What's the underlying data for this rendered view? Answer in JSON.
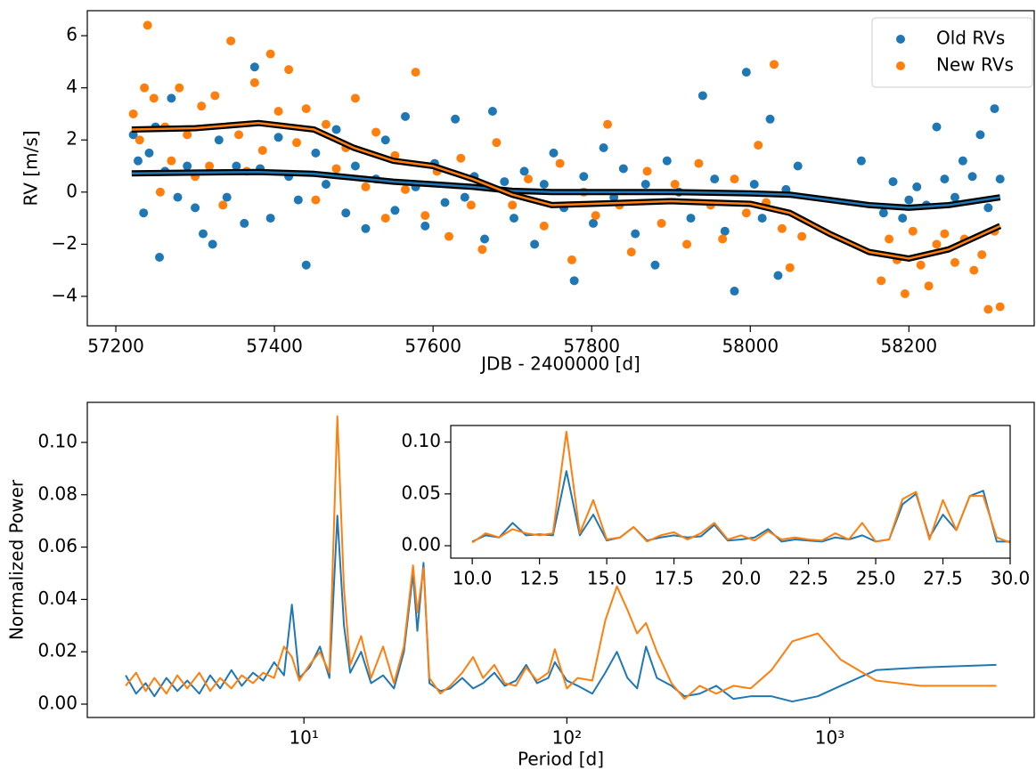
{
  "chart_data": [
    {
      "type": "scatter",
      "xlabel": "JDB - 2400000 [d]",
      "ylabel": "RV [m/s]",
      "xlim": [
        57164,
        58358
      ],
      "ylim": [
        -5.13,
        6.96
      ],
      "xticks": [
        57200,
        57400,
        57600,
        57800,
        58000,
        58200
      ],
      "yticks": [
        {
          "value": -4,
          "label": "−4"
        },
        {
          "value": -2,
          "label": "−2"
        },
        0,
        2,
        4,
        6
      ],
      "legend": "upper right",
      "series": [
        {
          "name": "Old RVs",
          "color": "#1f77b4",
          "x": [
            57222,
            57228,
            57235,
            57242,
            57250,
            57255,
            57262,
            57270,
            57278,
            57290,
            57300,
            57310,
            57322,
            57330,
            57340,
            57352,
            57362,
            57375,
            57382,
            57395,
            57405,
            57418,
            57430,
            57440,
            57452,
            57465,
            57478,
            57490,
            57502,
            57515,
            57528,
            57540,
            57552,
            57565,
            57578,
            57590,
            57602,
            57615,
            57628,
            57640,
            57652,
            57665,
            57675,
            57690,
            57702,
            57715,
            57728,
            57740,
            57752,
            57765,
            57778,
            57790,
            57802,
            57815,
            57828,
            57840,
            57855,
            57868,
            57880,
            57895,
            57910,
            57925,
            57940,
            57955,
            57968,
            57980,
            57995,
            58005,
            58015,
            58025,
            58035,
            58045,
            58060,
            58140,
            58168,
            58180,
            58192,
            58200,
            58210,
            58222,
            58235,
            58245,
            58258,
            58268,
            58280,
            58290,
            58300,
            58308,
            58315
          ],
          "values": [
            2.2,
            1.2,
            -0.8,
            1.5,
            2.5,
            -2.5,
            0.8,
            3.6,
            -0.2,
            1.0,
            -0.6,
            -1.6,
            -2.0,
            2.0,
            -0.2,
            1.0,
            -1.2,
            4.8,
            0.9,
            -1.0,
            2.1,
            0.6,
            -0.3,
            -2.8,
            1.5,
            0.3,
            2.4,
            -0.8,
            1.0,
            -1.4,
            0.5,
            2.0,
            -0.7,
            2.9,
            0.2,
            -1.3,
            1.1,
            -0.4,
            2.8,
            -0.2,
            0.6,
            -1.8,
            3.1,
            0.4,
            -1.0,
            0.8,
            -2.0,
            0.3,
            1.5,
            -0.6,
            -3.4,
            0.6,
            -1.2,
            1.7,
            -0.2,
            0.9,
            -1.6,
            0.3,
            -2.8,
            1.2,
            0.0,
            -1.0,
            3.7,
            0.5,
            -1.5,
            -3.8,
            4.6,
            0.3,
            -1.0,
            2.8,
            -3.2,
            0.1,
            1.0,
            1.2,
            -0.8,
            0.4,
            -1.0,
            -0.3,
            0.2,
            -0.5,
            2.5,
            0.5,
            -0.2,
            1.2,
            0.6,
            2.2,
            -0.6,
            3.2,
            0.5
          ]
        },
        {
          "name": "New RVs",
          "color": "#ff7f0e",
          "x": [
            57222,
            57230,
            57236,
            57240,
            57248,
            57256,
            57262,
            57270,
            57280,
            57290,
            57300,
            57308,
            57318,
            57325,
            57335,
            57345,
            57355,
            57365,
            57375,
            57385,
            57395,
            57405,
            57418,
            57428,
            57440,
            57452,
            57465,
            57478,
            57490,
            57502,
            57515,
            57528,
            57540,
            57552,
            57565,
            57578,
            57590,
            57605,
            57620,
            57635,
            57648,
            57662,
            57680,
            57700,
            57720,
            57740,
            57760,
            57775,
            57790,
            57805,
            57820,
            57835,
            57850,
            57870,
            57888,
            57905,
            57920,
            57935,
            57950,
            57965,
            57980,
            57995,
            58010,
            58020,
            58030,
            58040,
            58050,
            58065,
            58165,
            58175,
            58185,
            58195,
            58205,
            58215,
            58225,
            58235,
            58245,
            58258,
            58270,
            58282,
            58292,
            58300,
            58308,
            58315
          ],
          "values": [
            3.0,
            2.0,
            4.0,
            6.4,
            3.6,
            0.0,
            2.5,
            1.2,
            4.0,
            2.2,
            0.6,
            3.3,
            1.0,
            3.7,
            -0.5,
            5.8,
            2.2,
            0.8,
            4.2,
            1.6,
            5.3,
            3.1,
            4.7,
            1.9,
            3.2,
            -0.3,
            2.6,
            0.9,
            1.7,
            3.6,
            0.2,
            2.3,
            -1.0,
            1.4,
            0.1,
            4.6,
            -0.9,
            0.8,
            -1.7,
            1.3,
            -0.5,
            -2.2,
            1.9,
            -0.5,
            0.5,
            -1.3,
            1.1,
            -2.6,
            0.0,
            -0.9,
            2.6,
            -0.5,
            -2.3,
            0.8,
            -1.2,
            0.3,
            -2.0,
            1.1,
            -0.5,
            -1.8,
            0.5,
            -0.8,
            1.8,
            -0.4,
            4.9,
            -1.4,
            -2.9,
            -1.7,
            -3.4,
            -1.8,
            -2.6,
            -3.9,
            -1.5,
            -2.8,
            -3.6,
            -2.0,
            -1.6,
            -2.7,
            -1.8,
            -3.0,
            -2.4,
            -4.5,
            -1.5,
            -4.4
          ]
        }
      ],
      "fits": [
        {
          "color": "#1f77b4",
          "x": [
            57220,
            57300,
            57380,
            57450,
            57500,
            57550,
            57600,
            57650,
            57700,
            57750,
            57800,
            57900,
            58000,
            58050,
            58100,
            58150,
            58200,
            58250,
            58315
          ],
          "values": [
            0.72,
            0.75,
            0.77,
            0.7,
            0.55,
            0.4,
            0.3,
            0.2,
            0.05,
            0.0,
            0.0,
            0.0,
            -0.05,
            -0.1,
            -0.3,
            -0.5,
            -0.6,
            -0.5,
            -0.2
          ]
        },
        {
          "color": "#ff7f0e",
          "x": [
            57220,
            57300,
            57380,
            57450,
            57500,
            57550,
            57600,
            57650,
            57700,
            57750,
            57800,
            57900,
            58000,
            58050,
            58100,
            58150,
            58200,
            58250,
            58315
          ],
          "values": [
            2.4,
            2.45,
            2.65,
            2.4,
            1.7,
            1.2,
            1.0,
            0.5,
            -0.1,
            -0.5,
            -0.45,
            -0.35,
            -0.45,
            -0.8,
            -1.6,
            -2.3,
            -2.55,
            -2.2,
            -1.3
          ]
        }
      ]
    },
    {
      "type": "line",
      "xlabel": "Period [d]",
      "ylabel": "Normalized Power",
      "xlog": true,
      "xlim": [
        1.5,
        5990
      ],
      "ylim": [
        -0.0051,
        0.1153
      ],
      "xticks": [
        {
          "value": 10,
          "label": "10¹"
        },
        {
          "value": 100,
          "label": "10²"
        },
        {
          "value": 1000,
          "label": "10³"
        }
      ],
      "yticks": [
        {
          "value": 0,
          "label": "0.00"
        },
        {
          "value": 0.02,
          "label": "0.02"
        },
        {
          "value": 0.04,
          "label": "0.04"
        },
        {
          "value": 0.06,
          "label": "0.06"
        },
        {
          "value": 0.08,
          "label": "0.08"
        },
        {
          "value": 0.1,
          "label": "0.10"
        }
      ],
      "x": [
        2.1,
        2.3,
        2.5,
        2.7,
        3,
        3.3,
        3.6,
        4,
        4.4,
        4.8,
        5.3,
        5.8,
        6.4,
        7,
        7.7,
        8.4,
        9,
        9.6,
        10.5,
        11.5,
        12.5,
        13.4,
        14.2,
        15,
        16.5,
        18,
        20,
        22,
        24,
        26,
        27,
        28.5,
        30,
        33,
        36,
        40,
        44,
        48,
        53,
        58,
        64,
        70,
        77,
        85,
        90,
        100,
        110,
        125,
        140,
        155,
        170,
        185,
        200,
        220,
        250,
        280,
        320,
        370,
        430,
        500,
        600,
        720,
        900,
        1100,
        1500,
        2200,
        4300
      ],
      "series": [
        {
          "color": "#1f77b4",
          "values": [
            0.011,
            0.004,
            0.008,
            0.003,
            0.01,
            0.005,
            0.009,
            0.004,
            0.011,
            0.006,
            0.013,
            0.007,
            0.012,
            0.009,
            0.016,
            0.011,
            0.038,
            0.01,
            0.014,
            0.022,
            0.01,
            0.072,
            0.03,
            0.012,
            0.02,
            0.008,
            0.011,
            0.006,
            0.02,
            0.05,
            0.028,
            0.054,
            0.008,
            0.005,
            0.006,
            0.01,
            0.006,
            0.008,
            0.012,
            0.007,
            0.009,
            0.015,
            0.008,
            0.01,
            0.016,
            0.009,
            0.007,
            0.004,
            0.012,
            0.02,
            0.01,
            0.006,
            0.022,
            0.01,
            0.007,
            0.003,
            0.004,
            0.007,
            0.002,
            0.003,
            0.003,
            0.001,
            0.003,
            0.007,
            0.013,
            0.014,
            0.015
          ]
        },
        {
          "color": "#ff7f0e",
          "values": [
            0.007,
            0.012,
            0.005,
            0.01,
            0.004,
            0.011,
            0.006,
            0.012,
            0.005,
            0.01,
            0.006,
            0.011,
            0.008,
            0.012,
            0.01,
            0.022,
            0.018,
            0.009,
            0.015,
            0.02,
            0.012,
            0.11,
            0.044,
            0.015,
            0.026,
            0.01,
            0.022,
            0.008,
            0.022,
            0.053,
            0.035,
            0.052,
            0.01,
            0.004,
            0.007,
            0.012,
            0.018,
            0.01,
            0.015,
            0.008,
            0.007,
            0.014,
            0.009,
            0.012,
            0.021,
            0.006,
            0.01,
            0.009,
            0.032,
            0.045,
            0.036,
            0.027,
            0.031,
            0.02,
            0.008,
            0.002,
            0.007,
            0.004,
            0.007,
            0.006,
            0.013,
            0.024,
            0.027,
            0.017,
            0.009,
            0.007,
            0.007
          ]
        }
      ]
    },
    {
      "type": "line",
      "xlim": [
        9.2,
        30
      ],
      "ylim": [
        -0.012,
        0.116
      ],
      "xticks": [
        {
          "value": 10,
          "label": "10.0"
        },
        {
          "value": 12.5,
          "label": "12.5"
        },
        {
          "value": 15,
          "label": "15.0"
        },
        {
          "value": 17.5,
          "label": "17.5"
        },
        {
          "value": 20,
          "label": "20.0"
        },
        {
          "value": 22.5,
          "label": "22.5"
        },
        {
          "value": 25,
          "label": "25.0"
        },
        {
          "value": 27.5,
          "label": "27.5"
        },
        {
          "value": 30,
          "label": "30.0"
        }
      ],
      "yticks": [
        {
          "value": 0,
          "label": "0.00"
        },
        {
          "value": 0.05,
          "label": "0.05"
        },
        {
          "value": 0.1,
          "label": "0.10"
        }
      ],
      "x": [
        10,
        10.5,
        11,
        11.5,
        12,
        12.5,
        13,
        13.5,
        14,
        14.5,
        15,
        15.5,
        16,
        16.5,
        17,
        17.5,
        18,
        18.5,
        19,
        19.5,
        20,
        20.5,
        21,
        21.5,
        22,
        22.5,
        23,
        23.5,
        24,
        24.5,
        25,
        25.5,
        26,
        26.5,
        27,
        27.5,
        28,
        28.5,
        29,
        29.5,
        30
      ],
      "series": [
        {
          "color": "#1f77b4",
          "values": [
            0.004,
            0.01,
            0.008,
            0.022,
            0.01,
            0.011,
            0.01,
            0.072,
            0.01,
            0.03,
            0.005,
            0.008,
            0.018,
            0.005,
            0.008,
            0.01,
            0.008,
            0.009,
            0.02,
            0.005,
            0.006,
            0.008,
            0.016,
            0.004,
            0.006,
            0.005,
            0.004,
            0.008,
            0.006,
            0.01,
            0.004,
            0.006,
            0.04,
            0.05,
            0.008,
            0.03,
            0.015,
            0.048,
            0.053,
            0.004,
            0.004
          ]
        },
        {
          "color": "#ff7f0e",
          "values": [
            0.003,
            0.012,
            0.008,
            0.016,
            0.012,
            0.01,
            0.012,
            0.11,
            0.012,
            0.044,
            0.006,
            0.008,
            0.018,
            0.004,
            0.01,
            0.013,
            0.006,
            0.012,
            0.022,
            0.006,
            0.01,
            0.005,
            0.014,
            0.006,
            0.008,
            0.006,
            0.005,
            0.012,
            0.006,
            0.022,
            0.004,
            0.006,
            0.045,
            0.052,
            0.006,
            0.044,
            0.015,
            0.048,
            0.048,
            0.008,
            0.003
          ]
        }
      ]
    }
  ]
}
